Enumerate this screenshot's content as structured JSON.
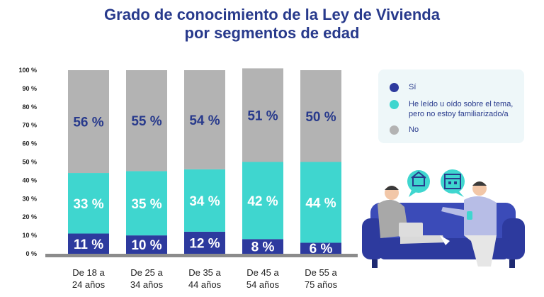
{
  "title_line1": "Grado de conocimiento de la Ley de Vivienda",
  "title_line2": "por segmentos de edad",
  "legend": [
    {
      "label": "Sí",
      "color": "#2d3a9e"
    },
    {
      "label": "He leído u oído sobre el tema, pero no estoy familiarizado/a",
      "color": "#3fd6cf"
    },
    {
      "label": "No",
      "color": "#b3b3b3"
    }
  ],
  "chart_data": {
    "type": "bar",
    "stacked": true,
    "categories": [
      "De 18 a 24 años",
      "De 25 a 34 años",
      "De 35 a 44 años",
      "De 45 a 54 años",
      "De 55 a 75 años"
    ],
    "category_lines": [
      [
        "De 18 a",
        "24 años"
      ],
      [
        "De 25 a",
        "34 años"
      ],
      [
        "De 35 a",
        "44 años"
      ],
      [
        "De 45 a",
        "54 años"
      ],
      [
        "De 55 a",
        "75 años"
      ]
    ],
    "series": [
      {
        "name": "Sí",
        "color": "#2d3a9e",
        "values": [
          11,
          10,
          12,
          8,
          6
        ],
        "labels": [
          "11 %",
          "10 %",
          "12 %",
          "8 %",
          "6 %"
        ]
      },
      {
        "name": "He leído u oído sobre el tema, pero no estoy familiarizado/a",
        "color": "#3fd6cf",
        "values": [
          33,
          35,
          34,
          42,
          44
        ],
        "labels": [
          "33 %",
          "35 %",
          "34 %",
          "42 %",
          "44 %"
        ]
      },
      {
        "name": "No",
        "color": "#b3b3b3",
        "values": [
          56,
          55,
          54,
          51,
          50
        ],
        "labels": [
          "56 %",
          "55 %",
          "54 %",
          "51 %",
          "50 %"
        ]
      }
    ],
    "yticks": [
      0,
      10,
      20,
      30,
      40,
      50,
      60,
      70,
      80,
      90,
      100
    ],
    "ytick_labels": [
      "0 %",
      "10 %",
      "20 %",
      "30 %",
      "40 %",
      "50 %",
      "60 %",
      "70 %",
      "80 %",
      "90 %",
      "100 %"
    ],
    "ylim": [
      0,
      100
    ],
    "grid": false,
    "legend_position": "right"
  }
}
